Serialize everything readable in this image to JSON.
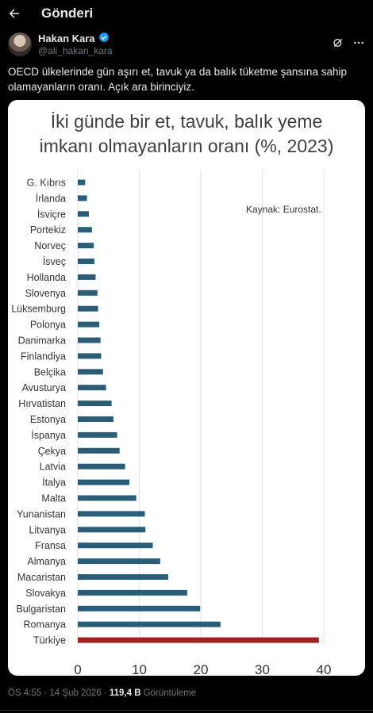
{
  "header": {
    "title": "Gönderi"
  },
  "author": {
    "name": "Hakan Kara",
    "handle": "@ali_hakan_kara"
  },
  "tweet": {
    "text": "OECD ülkelerinde gün aşırı et, tavuk ya da balık tüketme şansına sahip olamayanların oranı. Açık ara birinciyiz."
  },
  "chart_data": {
    "type": "bar",
    "orientation": "horizontal",
    "title_line1": "İki günde bir et, tavuk, balık yeme",
    "title_line2": "imkanı olmayanların oranı (%, 2023)",
    "source": "Kaynak: Eurostat.",
    "categories": [
      "G. Kıbrıs",
      "İrlanda",
      "İsviçre",
      "Portekiz",
      "Norveç",
      "İsveç",
      "Hollanda",
      "Slovenya",
      "Lüksemburg",
      "Polonya",
      "Danimarka",
      "Finlandiya",
      "Belçika",
      "Avusturya",
      "Hırvatistan",
      "Estonya",
      "İspanya",
      "Çekya",
      "Latvia",
      "İtalya",
      "Malta",
      "Yunanistan",
      "Litvanya",
      "Fransa",
      "Almanya",
      "Macaristan",
      "Slovakya",
      "Bulgaristan",
      "Romanya",
      "Türkiye"
    ],
    "values": [
      1.2,
      1.5,
      1.8,
      2.3,
      2.6,
      2.7,
      2.9,
      3.2,
      3.3,
      3.5,
      3.7,
      3.8,
      4.1,
      4.6,
      5.5,
      5.8,
      6.4,
      6.8,
      7.7,
      8.4,
      9.5,
      10.9,
      11.0,
      12.2,
      13.4,
      14.7,
      17.8,
      19.9,
      23.2,
      39.2
    ],
    "colors": {
      "default": "#2a5e78",
      "highlight": "#a32024"
    },
    "highlight": "Türkiye",
    "xlim": [
      0,
      40
    ],
    "xticks": [
      0,
      10,
      20,
      30,
      40
    ],
    "grid": true
  },
  "footer": {
    "time": "ÖS 4:55 · 14 Şub 2026 · ",
    "views": "119,4 B",
    "views_label": " Görüntüleme"
  }
}
